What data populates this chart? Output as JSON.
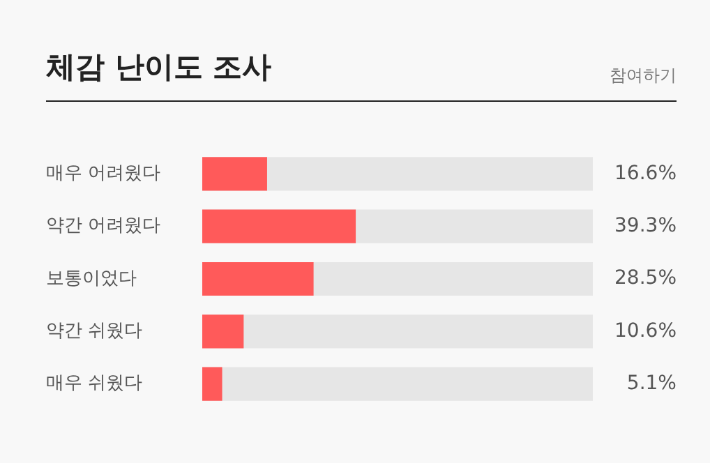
{
  "chart_data": {
    "type": "bar",
    "orientation": "horizontal",
    "title": "체감 난이도 조사",
    "annotations": [
      "참여하기"
    ],
    "categories": [
      "매우 어려웠다",
      "약간 어려웠다",
      "보통이었다",
      "약간 쉬웠다",
      "매우 쉬웠다"
    ],
    "values": [
      16.6,
      39.3,
      28.5,
      10.6,
      5.1
    ],
    "color": "#ff5a5a",
    "value_labels": [
      "16.6%",
      "39.3%",
      "28.5%",
      "10.6%",
      "5.1%"
    ],
    "xlim": [
      0,
      100
    ],
    "tick_labels": "y"
  }
}
